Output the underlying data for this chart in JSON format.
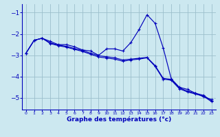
{
  "xlabel": "Graphe des températures (°c)",
  "bg_color": "#cce8f0",
  "grid_color": "#9bbfcc",
  "line_color": "#0000bb",
  "xlim": [
    -0.5,
    23.5
  ],
  "ylim": [
    -5.55,
    -0.6
  ],
  "yticks": [
    -5,
    -4,
    -3,
    -2,
    -1
  ],
  "xticks": [
    0,
    1,
    2,
    3,
    4,
    5,
    6,
    7,
    8,
    9,
    10,
    11,
    12,
    13,
    14,
    15,
    16,
    17,
    18,
    19,
    20,
    21,
    22,
    23
  ],
  "s1_x": [
    0,
    1,
    2,
    3,
    4,
    5,
    6,
    7,
    8,
    9,
    10,
    11,
    12,
    13,
    14,
    15,
    16,
    17,
    18,
    19,
    20,
    21,
    22,
    23
  ],
  "s1_y": [
    -2.9,
    -2.3,
    -2.2,
    -2.35,
    -2.5,
    -2.5,
    -2.6,
    -2.75,
    -2.8,
    -3.0,
    -2.7,
    -2.7,
    -2.8,
    -2.4,
    -1.8,
    -1.1,
    -1.5,
    -2.65,
    -4.1,
    -4.5,
    -4.6,
    -4.78,
    -4.95,
    -5.08
  ],
  "s2_x": [
    0,
    1,
    2,
    3,
    4,
    5,
    6,
    7,
    8,
    9,
    10,
    11,
    12,
    13,
    14,
    15,
    16,
    17,
    18,
    19,
    20,
    21,
    22,
    23
  ],
  "s2_y": [
    -2.9,
    -2.3,
    -2.2,
    -2.42,
    -2.52,
    -2.58,
    -2.68,
    -2.78,
    -2.9,
    -3.02,
    -3.07,
    -3.12,
    -3.22,
    -3.18,
    -3.14,
    -3.1,
    -3.48,
    -4.08,
    -4.13,
    -4.53,
    -4.68,
    -4.78,
    -4.88,
    -5.13
  ],
  "s3_x": [
    0,
    1,
    2,
    3,
    4,
    5,
    6,
    7,
    8,
    9,
    10,
    11,
    12,
    13,
    14,
    15,
    16,
    17,
    18,
    19,
    20,
    21,
    22,
    23
  ],
  "s3_y": [
    -2.9,
    -2.3,
    -2.2,
    -2.45,
    -2.55,
    -2.62,
    -2.72,
    -2.82,
    -2.95,
    -3.08,
    -3.13,
    -3.18,
    -3.28,
    -3.22,
    -3.18,
    -3.12,
    -3.52,
    -4.12,
    -4.17,
    -4.57,
    -4.72,
    -4.82,
    -4.92,
    -5.18
  ]
}
